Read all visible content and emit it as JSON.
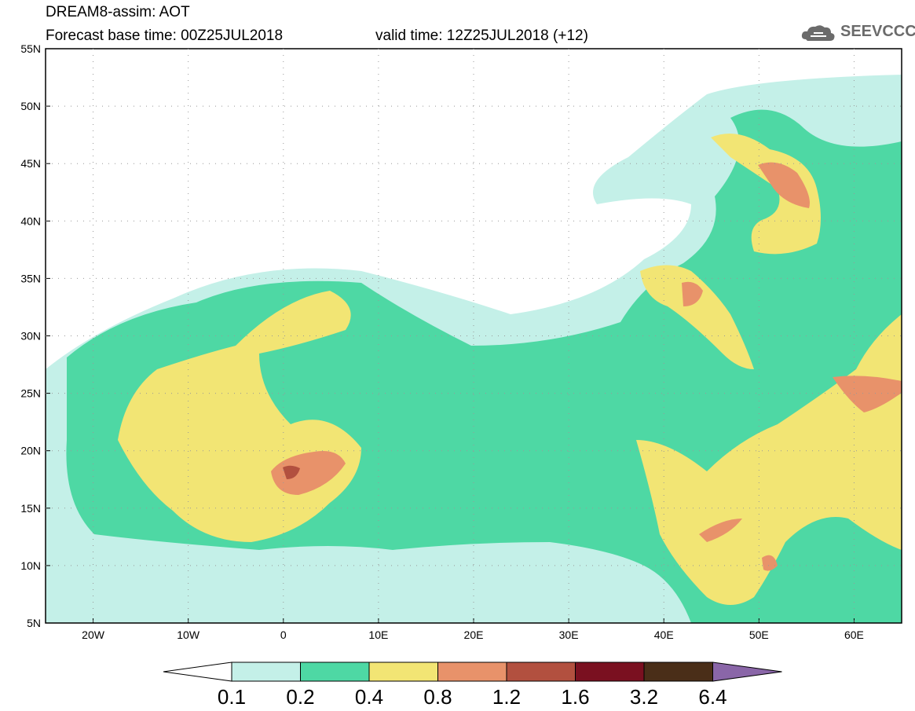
{
  "header": {
    "line1": "DREAM8-assim: AOT",
    "line2": "Forecast base time: 00Z25JUL2018",
    "valid": "valid time: 12Z25JUL2018 (+12)",
    "logo_text": "SEEVCCC"
  },
  "map": {
    "extent": {
      "lon": [
        -25,
        65
      ],
      "lat": [
        5,
        55
      ]
    },
    "lat_labels": [
      "55N",
      "50N",
      "45N",
      "40N",
      "35N",
      "30N",
      "25N",
      "20N",
      "15N",
      "10N",
      "5N"
    ],
    "lon_labels": [
      "20W",
      "10W",
      "0",
      "10E",
      "20E",
      "30E",
      "40E",
      "50E",
      "60E"
    ],
    "colors": {
      "land_none": "#ffffff",
      "aot_0_1": "#c4f0e8",
      "aot_0_2": "#4ed8a4",
      "aot_0_4": "#f2e574",
      "aot_0_8": "#e8926a",
      "aot_1_2": "#b2503f",
      "aot_1_6": "#7a1020",
      "aot_3_2": "#4a2e18",
      "aot_6_4": "#8a66a8"
    }
  },
  "colorbar": {
    "labels": [
      "0.1",
      "0.2",
      "0.4",
      "0.8",
      "1.2",
      "1.6",
      "3.2",
      "6.4"
    ],
    "colors": [
      "#c4f0e8",
      "#4ed8a4",
      "#f2e574",
      "#e8926a",
      "#b2503f",
      "#7a1020",
      "#4a2e18",
      "#8a66a8"
    ]
  }
}
